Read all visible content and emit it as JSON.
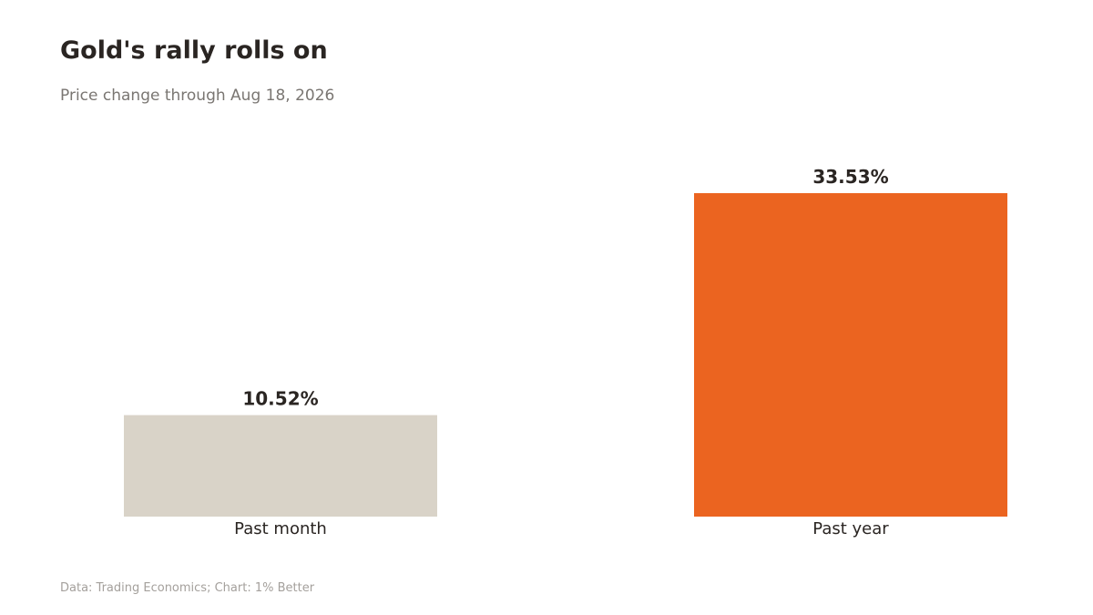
{
  "header": {
    "title": "Gold's rally rolls on",
    "subtitle": "Price change through Aug 18, 2026"
  },
  "footer": {
    "source": "Data: Trading Economics; Chart: 1% Better"
  },
  "chart_data": {
    "type": "bar",
    "categories": [
      "Past month",
      "Past year"
    ],
    "values": [
      10.52,
      33.53
    ],
    "data_labels": [
      "10.52%",
      "33.53%"
    ],
    "colors": [
      "#d9d3c8",
      "#eb6420"
    ],
    "ylim": [
      0,
      33.53
    ],
    "grid": false,
    "title": "Gold's rally rolls on",
    "subtitle": "Price change through Aug 18, 2026"
  }
}
